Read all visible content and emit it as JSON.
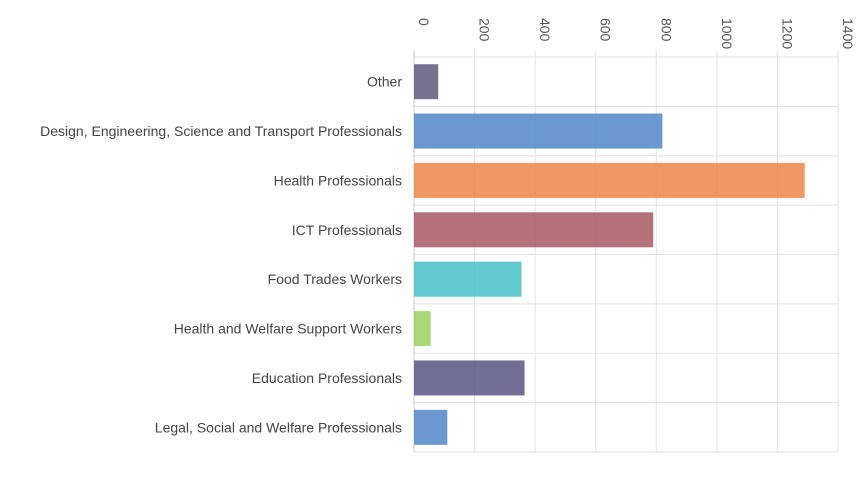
{
  "chart_data": {
    "type": "bar",
    "orientation": "horizontal",
    "title": "",
    "xlabel": "",
    "ylabel": "",
    "xlim": [
      0,
      1400
    ],
    "xticks": [
      0,
      200,
      400,
      600,
      800,
      1000,
      1200,
      1400
    ],
    "xtick_labels": [
      "0",
      "200",
      "400",
      "600",
      "800",
      "1000",
      "1200",
      "1400"
    ],
    "grid": true,
    "categories": [
      "Other",
      "Design, Engineering, Science and Transport Professionals",
      "Health Professionals",
      "ICT Professionals",
      "Food Trades Workers",
      "Health and Welfare Support Workers",
      "Education Professionals",
      "Legal, Social and Welfare Professionals"
    ],
    "values": [
      80,
      820,
      1290,
      790,
      355,
      55,
      365,
      110
    ],
    "colors": [
      "#605a80",
      "#4f87c8",
      "#ed8548",
      "#a85861",
      "#46bfc5",
      "#9dd060",
      "#5b5582",
      "#4f87c8"
    ]
  }
}
